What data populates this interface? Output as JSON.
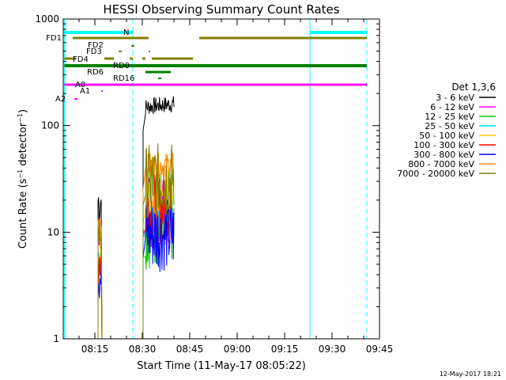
{
  "chart_data": {
    "type": "line",
    "title": "HESSI Observing Summary Count Rates",
    "xlabel": "Start Time (11-May-17 08:05:22)",
    "ylabel": "Count Rate (s⁻¹ detector⁻¹)",
    "yscale": "log",
    "ylim": [
      1,
      1000
    ],
    "xlim": [
      "08:05",
      "09:45"
    ],
    "x_ticks": [
      "08:15",
      "08:30",
      "08:45",
      "09:00",
      "09:15",
      "09:30",
      "09:45"
    ],
    "y_ticks": [
      "1",
      "10",
      "100",
      "1000"
    ],
    "legend_title": "Det 1,3,6",
    "legend_position": "right",
    "series": [
      {
        "name": "3 - 6 keV",
        "color": "#000000",
        "points": [
          [
            "08:16:30",
            20
          ],
          [
            "08:31:00",
            150
          ],
          [
            "08:40:00",
            160
          ]
        ]
      },
      {
        "name": "6 - 12 keV",
        "color": "#ff00ff",
        "points": [
          [
            "08:16:30",
            8
          ],
          [
            "08:31:00",
            15
          ],
          [
            "08:40:00",
            17
          ]
        ]
      },
      {
        "name": "12 - 25 keV",
        "color": "#00cc00",
        "points": [
          [
            "08:16:30",
            6
          ],
          [
            "08:31:00",
            10
          ],
          [
            "08:40:00",
            11
          ]
        ]
      },
      {
        "name": "25 - 50 keV",
        "color": "#00dddd",
        "points": [
          [
            "08:16:30",
            5
          ],
          [
            "08:31:00",
            18
          ],
          [
            "08:40:00",
            20
          ]
        ]
      },
      {
        "name": "50 - 100 keV",
        "color": "#ffcc00",
        "points": [
          [
            "08:16:30",
            5
          ],
          [
            "08:31:00",
            20
          ],
          [
            "08:40:00",
            22
          ]
        ]
      },
      {
        "name": "100 - 300 keV",
        "color": "#ff0000",
        "points": [
          [
            "08:16:30",
            6
          ],
          [
            "08:31:00",
            16
          ],
          [
            "08:40:00",
            17
          ]
        ]
      },
      {
        "name": "300 - 800 keV",
        "color": "#0000ff",
        "points": [
          [
            "08:16:30",
            4
          ],
          [
            "08:31:00",
            9.5
          ],
          [
            "08:40:00",
            9.5
          ]
        ]
      },
      {
        "name": "800 - 7000 keV",
        "color": "#ff8800",
        "points": [
          [
            "08:16:30",
            12
          ],
          [
            "08:31:00",
            42
          ],
          [
            "08:40:00",
            43
          ]
        ]
      },
      {
        "name": "7000 - 20000 keV",
        "color": "#808000",
        "points": [
          [
            "08:16:30",
            10
          ],
          [
            "08:31:00",
            30
          ],
          [
            "08:40:00",
            32
          ]
        ]
      }
    ],
    "flag_bars": [
      {
        "label": "N",
        "color": "#00ffff",
        "segments": [
          [
            "08:05:22",
            "08:27:00"
          ],
          [
            "09:23:00",
            "09:41:00"
          ]
        ]
      },
      {
        "label": "FD1",
        "color": "#808000",
        "segments": [
          [
            "08:08:00",
            "08:32:00"
          ],
          [
            "08:48:00",
            "09:41:00"
          ]
        ]
      },
      {
        "label": "FD2",
        "color": "#808000",
        "segments": [
          [
            "08:26:30",
            "08:27:30"
          ]
        ]
      },
      {
        "label": "FD3",
        "color": "#808000",
        "segments": [
          [
            "08:22:30",
            "08:23:30"
          ],
          [
            "08:32:00",
            "08:32:30"
          ]
        ]
      },
      {
        "label": "FD4",
        "color": "#808000",
        "segments": [
          [
            "08:05:22",
            "08:09:00"
          ],
          [
            "08:18:00",
            "08:21:00"
          ],
          [
            "08:26:00",
            "08:27:00"
          ],
          [
            "08:30:00",
            "08:31:00"
          ],
          [
            "08:33:00",
            "08:46:00"
          ]
        ]
      },
      {
        "label": "RD0",
        "color": "#008000",
        "segments": [
          [
            "08:05:22",
            "09:41:00"
          ]
        ]
      },
      {
        "label": "RD6",
        "color": "#008000",
        "segments": [
          [
            "08:31:00",
            "08:39:00"
          ]
        ]
      },
      {
        "label": "RD16",
        "color": "#008000",
        "segments": [
          [
            "08:35:00",
            "08:36:00"
          ]
        ]
      },
      {
        "label": "A0",
        "color": "#ff00ff",
        "segments": [
          [
            "08:05:22",
            "09:41:00"
          ]
        ]
      },
      {
        "label": "A1",
        "color": "#ff00ff",
        "segments": [
          [
            "08:17:00",
            "08:17:30"
          ]
        ]
      },
      {
        "label": "A2",
        "color": "#ff00ff",
        "segments": [
          [
            "08:08:30",
            "08:09:30"
          ]
        ]
      }
    ],
    "vertical_lines": [
      {
        "time": "08:05:22",
        "color": "#00ffff",
        "style": "solid"
      },
      {
        "time": "08:27:00",
        "color": "#00ffff",
        "style": "dashed"
      },
      {
        "time": "09:23:00",
        "color": "#00ffff",
        "style": "solid"
      },
      {
        "time": "09:41:00",
        "color": "#00ffff",
        "style": "dashed"
      }
    ],
    "grid": false
  },
  "footer": {
    "timestamp": "12-May-2017 18:21"
  }
}
